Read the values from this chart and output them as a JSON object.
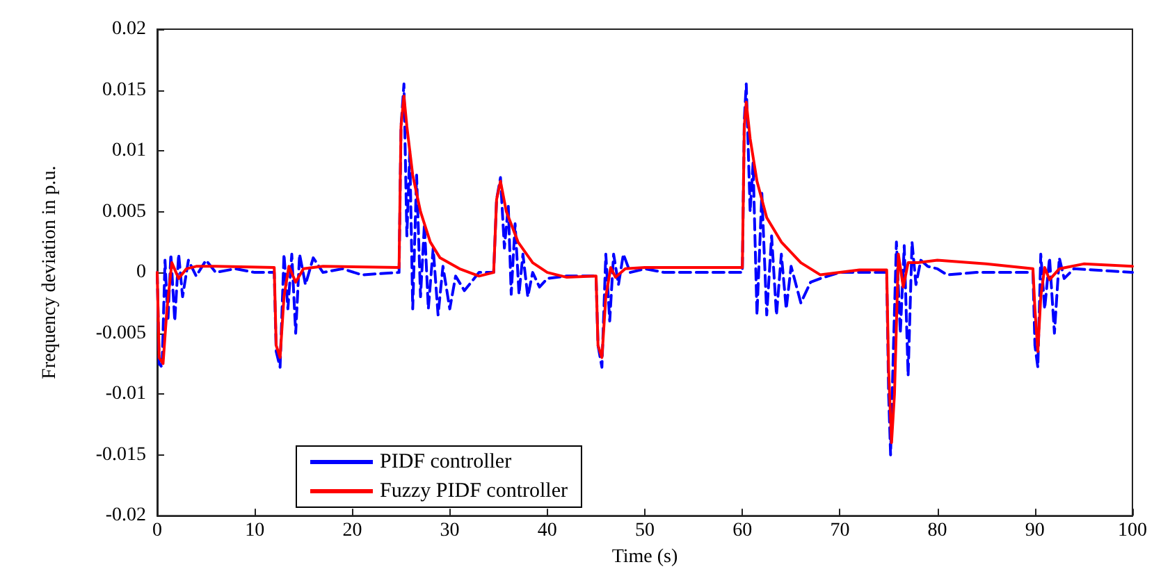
{
  "chart_data": {
    "type": "line",
    "xlabel": "Time (s)",
    "ylabel": "Frequency deviation in p.u.",
    "xlim": [
      0,
      100
    ],
    "xticks": [
      0,
      10,
      20,
      30,
      40,
      50,
      60,
      70,
      80,
      90,
      100
    ],
    "ylim": [
      -0.02,
      0.02
    ],
    "yticks": [
      -0.02,
      -0.015,
      -0.01,
      -0.005,
      0,
      0.005,
      0.01,
      0.015,
      0.02
    ],
    "grid": false,
    "legend": "bottom left",
    "marker": "none",
    "series": [
      {
        "name": "PIDF controller",
        "color": "#0000ff",
        "line_style": "dashed",
        "x": [
          0,
          0.2,
          0.5,
          0.8,
          1.1,
          1.4,
          1.8,
          2.2,
          2.6,
          3.2,
          4,
          5,
          6,
          8,
          10,
          12,
          12.2,
          12.6,
          13,
          13.4,
          13.8,
          14.2,
          14.6,
          15.2,
          16,
          17,
          19,
          21,
          24.8,
          25,
          25.3,
          25.6,
          25.9,
          26.2,
          26.6,
          27,
          27.4,
          27.8,
          28.3,
          28.8,
          29.3,
          30,
          30.6,
          31.5,
          33,
          34.5,
          34.8,
          35.2,
          35.6,
          36,
          36.3,
          36.7,
          37.1,
          37.5,
          38,
          38.5,
          39.2,
          40,
          42,
          45,
          45.2,
          45.6,
          46,
          46.4,
          46.8,
          47.3,
          47.8,
          48.5,
          50,
          52,
          55,
          60,
          60.2,
          60.4,
          60.8,
          61.1,
          61.5,
          62,
          62.5,
          63,
          63.5,
          64,
          64.5,
          65,
          66,
          67,
          68,
          70,
          74.8,
          75,
          75.2,
          75.5,
          75.8,
          76.2,
          76.6,
          77,
          77.4,
          77.8,
          78.3,
          79,
          80,
          81,
          84,
          89.8,
          90,
          90.3,
          90.6,
          91,
          91.5,
          92,
          92.5,
          93,
          94,
          100
        ],
        "values": [
          0,
          -0.0075,
          -0.0078,
          0.001,
          -0.004,
          0.0015,
          -0.004,
          0.0015,
          -0.002,
          0.001,
          -0.0003,
          0.001,
          0,
          0.0003,
          0,
          0,
          -0.0065,
          -0.0078,
          0.0015,
          -0.003,
          0.0015,
          -0.005,
          0.0015,
          -0.001,
          0.0012,
          0,
          0.0003,
          -0.0002,
          0,
          0.012,
          0.0155,
          0.003,
          0.01,
          -0.003,
          0.008,
          -0.002,
          0.004,
          -0.003,
          0.002,
          -0.0035,
          0.0005,
          -0.003,
          -0.0003,
          -0.0015,
          0,
          0,
          0.006,
          0.0078,
          0.002,
          0.0055,
          -0.0018,
          0.004,
          -0.0018,
          0.0015,
          -0.002,
          0,
          -0.0012,
          -0.0005,
          -0.0003,
          -0.0003,
          -0.006,
          -0.0078,
          0.0015,
          -0.004,
          0.0015,
          -0.001,
          0.0015,
          0,
          0.0003,
          0,
          0,
          0,
          0.0125,
          0.0155,
          0.005,
          0.009,
          -0.0035,
          0.0065,
          -0.0035,
          0.003,
          -0.0035,
          0.0015,
          -0.003,
          0.0005,
          -0.0025,
          -0.0008,
          -0.0005,
          0,
          0,
          -0.01,
          -0.015,
          -0.006,
          0.0025,
          -0.005,
          0.0022,
          -0.0085,
          0.0025,
          -0.001,
          0.001,
          0.0005,
          0.0003,
          -0.0002,
          0,
          0,
          -0.006,
          -0.0078,
          0.0015,
          -0.003,
          0.0012,
          -0.005,
          0.0012,
          -0.0005,
          0.0003,
          0
        ]
      },
      {
        "name": "Fuzzy PIDF controller",
        "color": "#ff0000",
        "line_style": "solid",
        "x": [
          0,
          0.2,
          0.6,
          1,
          1.5,
          2.2,
          3,
          4,
          6,
          12,
          12.2,
          12.6,
          13,
          13.5,
          14.2,
          15,
          17,
          24.8,
          25,
          25.3,
          25.6,
          26.2,
          27,
          28,
          29,
          31,
          33,
          34.5,
          34.8,
          35.2,
          35.8,
          37,
          38.5,
          40,
          42,
          45,
          45.2,
          45.6,
          46,
          46.5,
          47,
          48,
          50,
          60,
          60.2,
          60.4,
          60.8,
          61.5,
          62.5,
          64,
          66,
          68,
          72,
          74.8,
          75,
          75.3,
          75.6,
          76,
          76.5,
          77,
          78,
          80,
          85,
          89.8,
          90,
          90.3,
          90.6,
          91,
          91.5,
          92.5,
          95,
          100
        ],
        "values": [
          0,
          -0.007,
          -0.0075,
          -0.003,
          0.0008,
          -0.0005,
          0.0003,
          0.0005,
          0.0005,
          0.0004,
          -0.006,
          -0.007,
          -0.002,
          0.0005,
          -0.0008,
          0.0003,
          0.0005,
          0.0004,
          0.012,
          0.0145,
          0.012,
          0.008,
          0.005,
          0.0025,
          0.0012,
          0.0003,
          -0.0003,
          0,
          0.006,
          0.0075,
          0.005,
          0.0025,
          0.0008,
          0,
          -0.0004,
          -0.0003,
          -0.006,
          -0.007,
          -0.002,
          0.0004,
          -0.0004,
          0.0003,
          0.0004,
          0.0004,
          0.012,
          0.014,
          0.011,
          0.0075,
          0.0045,
          0.0025,
          0.0008,
          -0.0002,
          0.0002,
          0.0002,
          -0.008,
          -0.014,
          -0.01,
          0.0015,
          -0.0012,
          0.0008,
          0.0008,
          0.001,
          0.0007,
          0.0003,
          -0.003,
          -0.0065,
          -0.002,
          0.0004,
          -0.0006,
          0.0003,
          0.0007,
          0.0005
        ]
      }
    ]
  }
}
